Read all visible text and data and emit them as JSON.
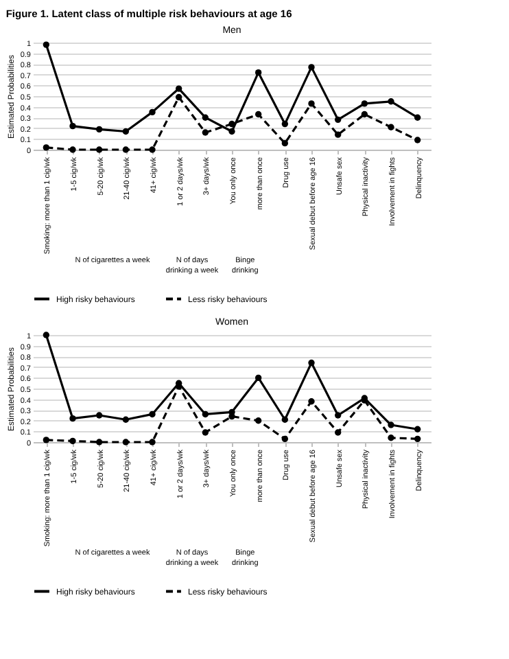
{
  "chart_data": [
    {
      "type": "line",
      "title": "Figure 1. Latent class of multiple risk behaviours at age 16",
      "subtitle": "Men",
      "ylabel": "Estimated Probabilities",
      "categories": [
        "Smoking: more than 1 cig/wk",
        "1-5 cig/wk",
        "5-20 cig/wk",
        "21-40 cig/wk",
        "41+ cig/wk",
        "1 or 2 days/wk",
        "3+ days/wk",
        "You only once",
        "more than once",
        "Drug use",
        "Sexual debut before age 16",
        "Unsafe sex",
        "Physical inactivity",
        "Involvement in fights",
        "Delinquency"
      ],
      "series": [
        {
          "name": "High risky behaviours",
          "color": "#000000",
          "line_style": "solid",
          "values": [
            0.98,
            0.22,
            0.19,
            0.17,
            0.35,
            0.57,
            0.3,
            0.17,
            0.72,
            0.24,
            0.77,
            0.28,
            0.43,
            0.45,
            0.3
          ]
        },
        {
          "name": "Less risky behaviours",
          "color": "#000000",
          "line_style": "dashed",
          "values": [
            0.02,
            0,
            0,
            0,
            0,
            0.49,
            0.16,
            0.24,
            0.33,
            0.06,
            0.43,
            0.14,
            0.33,
            0.21,
            0.09
          ]
        }
      ],
      "ylim": [
        0,
        1
      ],
      "yticks": [
        0,
        0.1,
        0.2,
        0.3,
        0.4,
        0.5,
        0.6,
        0.7,
        0.8,
        0.9,
        1
      ],
      "grid": "y",
      "marker": "circle",
      "legend": "bottom",
      "annotations": [
        "N of cigarettes a week",
        "N of days drinking a week",
        "Binge drinking"
      ]
    },
    {
      "type": "line",
      "title": "Women",
      "ylabel": "Estimated Probabilities",
      "categories": [
        "Smoking: more than 1 cig/wk",
        "1-5 cig/wk",
        "5-20 cig/wk",
        "21-40 cig/wk",
        "41+ cig/wk",
        "1 or 2 days/wk",
        "3+ days/wk",
        "You only once",
        "more than once",
        "Drug use",
        "Sexual debut before age 16",
        "Unsafe sex",
        "Physical inactivity",
        "Involvement in fights",
        "Delinquency"
      ],
      "series": [
        {
          "name": "High risky behaviours",
          "color": "#000000",
          "line_style": "solid",
          "values": [
            1.0,
            0.22,
            0.25,
            0.21,
            0.26,
            0.55,
            0.26,
            0.28,
            0.6,
            0.21,
            0.74,
            0.25,
            0.41,
            0.16,
            0.12
          ]
        },
        {
          "name": "Less risky behaviours",
          "color": "#000000",
          "line_style": "dashed",
          "values": [
            0.02,
            0.01,
            0,
            0,
            0,
            0.52,
            0.09,
            0.24,
            0.2,
            0.03,
            0.38,
            0.09,
            0.39,
            0.04,
            0.03
          ]
        }
      ],
      "ylim": [
        0,
        1
      ],
      "yticks": [
        0,
        0.1,
        0.2,
        0.3,
        0.4,
        0.5,
        0.6,
        0.7,
        0.8,
        0.9,
        1
      ],
      "grid": "y",
      "marker": "circle",
      "legend": "bottom",
      "annotations": [
        "N of cigarettes a week",
        "N of days drinking a week",
        "Binge drinking"
      ]
    }
  ]
}
